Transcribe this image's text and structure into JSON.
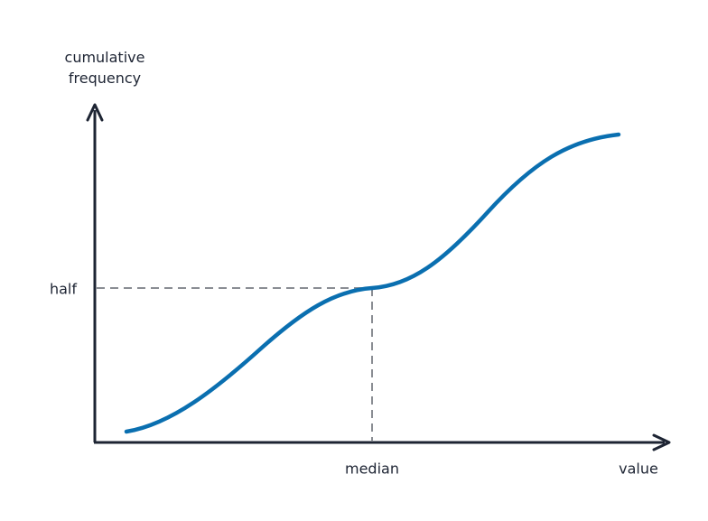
{
  "y_axis_label": "cumulative frequency",
  "y_marker_label": "half",
  "x_marker_label": "median",
  "x_axis_label": "value"
}
